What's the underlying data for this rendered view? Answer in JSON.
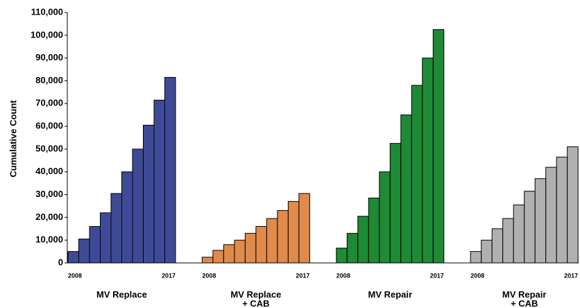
{
  "chart_data": {
    "type": "grouped_bar",
    "ylabel": "Cumulative Count",
    "categories": [
      "2008",
      null,
      null,
      null,
      null,
      null,
      null,
      null,
      null,
      "2017"
    ],
    "series": [
      {
        "name": "MV Replace",
        "color": "#3f4a97",
        "values": [
          5000,
          10500,
          16000,
          22000,
          30500,
          40000,
          50000,
          60500,
          71500,
          81500
        ]
      },
      {
        "name": "MV Replace\n+ CAB",
        "color": "#e08a4b",
        "values": [
          2500,
          5500,
          8000,
          10000,
          13000,
          16000,
          19500,
          23000,
          27000,
          30500
        ]
      },
      {
        "name": "MV Repair",
        "color": "#1e8a35",
        "values": [
          6500,
          13000,
          20500,
          28500,
          40000,
          52500,
          65000,
          78000,
          90000,
          102500
        ]
      },
      {
        "name": "MV Repair\n+ CAB",
        "color": "#b0b0b0",
        "values": [
          5000,
          10000,
          15000,
          19500,
          25500,
          31500,
          37000,
          42000,
          46500,
          51000
        ]
      }
    ],
    "ylim": [
      0,
      110000
    ],
    "yticks": [
      0,
      {
        "value": 10000,
        "label": "10,000"
      },
      {
        "value": 20000,
        "label": "20,000"
      },
      {
        "value": 30000,
        "label": "30,000"
      },
      {
        "value": 40000,
        "label": "40,000"
      },
      {
        "value": 50000,
        "label": "50,000"
      },
      {
        "value": 60000,
        "label": "60,000"
      },
      {
        "value": 70000,
        "label": "70,000"
      },
      {
        "value": 80000,
        "label": "80,000"
      },
      {
        "value": 90000,
        "label": "90,000"
      },
      {
        "value": 100000,
        "label": "100,000"
      },
      {
        "value": 110000,
        "label": "110,000"
      }
    ]
  }
}
